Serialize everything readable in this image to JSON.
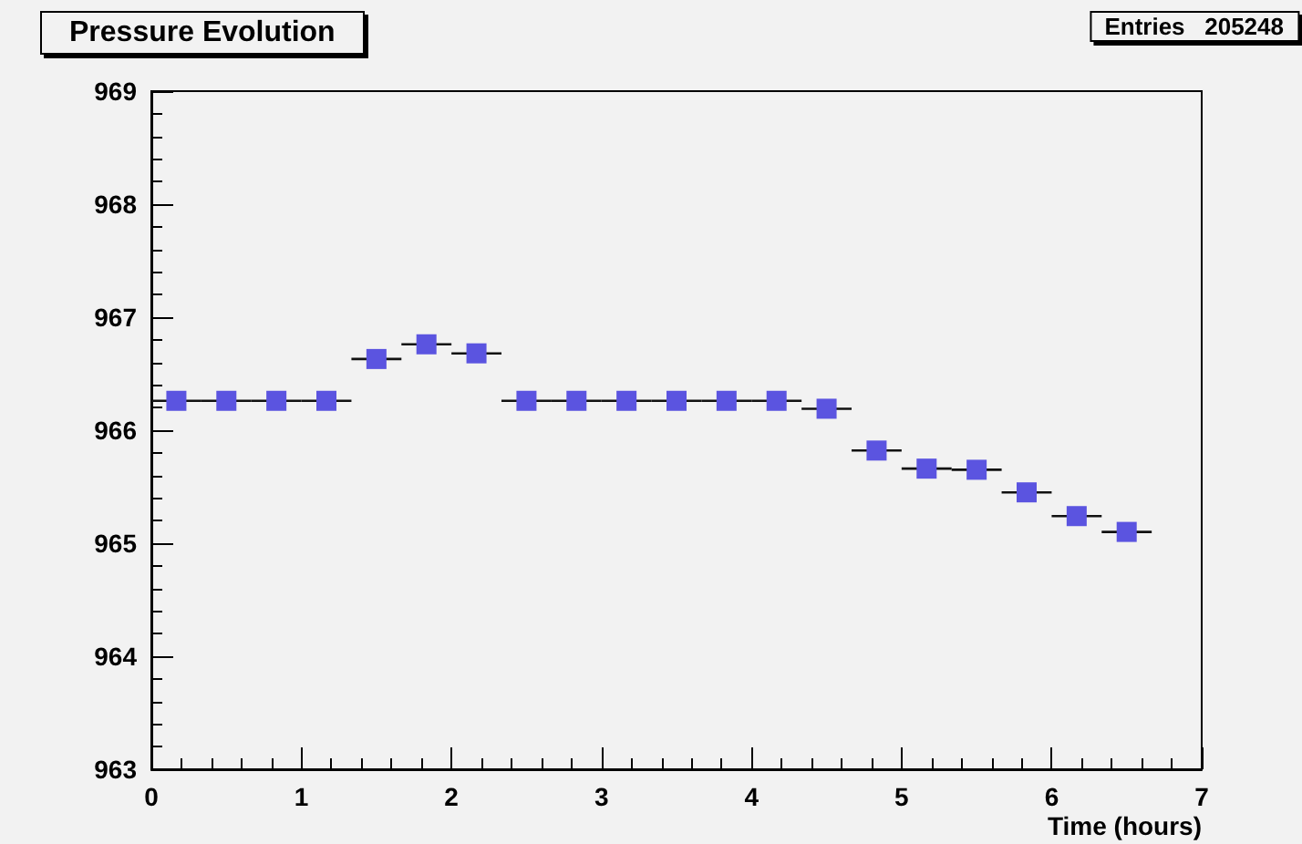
{
  "chart_data": {
    "type": "scatter",
    "title": "Pressure Evolution",
    "xlabel": "Time (hours)",
    "annotations": [
      "Entries   205248"
    ],
    "x": [
      0.1667,
      0.5,
      0.8333,
      1.1667,
      1.5,
      1.8333,
      2.1667,
      2.5,
      2.8333,
      3.1667,
      3.5,
      3.8333,
      4.1667,
      4.5,
      4.8333,
      5.1667,
      5.5,
      5.8333,
      6.1667,
      6.5
    ],
    "values": [
      966.26,
      966.26,
      966.26,
      966.26,
      966.63,
      966.76,
      966.68,
      966.26,
      966.26,
      966.26,
      966.26,
      966.26,
      966.26,
      966.19,
      965.82,
      965.66,
      965.65,
      965.45,
      965.24,
      965.1
    ],
    "xerrors": [
      0.1667,
      0.1667,
      0.1667,
      0.1667,
      0.1667,
      0.1667,
      0.1667,
      0.1667,
      0.1667,
      0.1667,
      0.1667,
      0.1667,
      0.1667,
      0.1667,
      0.1667,
      0.1667,
      0.1667,
      0.1667,
      0.1667,
      0.1667
    ],
    "color": "#5b54e0",
    "marker": "square",
    "xlim": [
      0,
      7
    ],
    "xticks": [
      0,
      1,
      2,
      3,
      4,
      5,
      6,
      7
    ],
    "ylim": [
      963,
      969
    ],
    "yticks": [
      963,
      964,
      965,
      966,
      967,
      968,
      969
    ],
    "grid": false
  }
}
